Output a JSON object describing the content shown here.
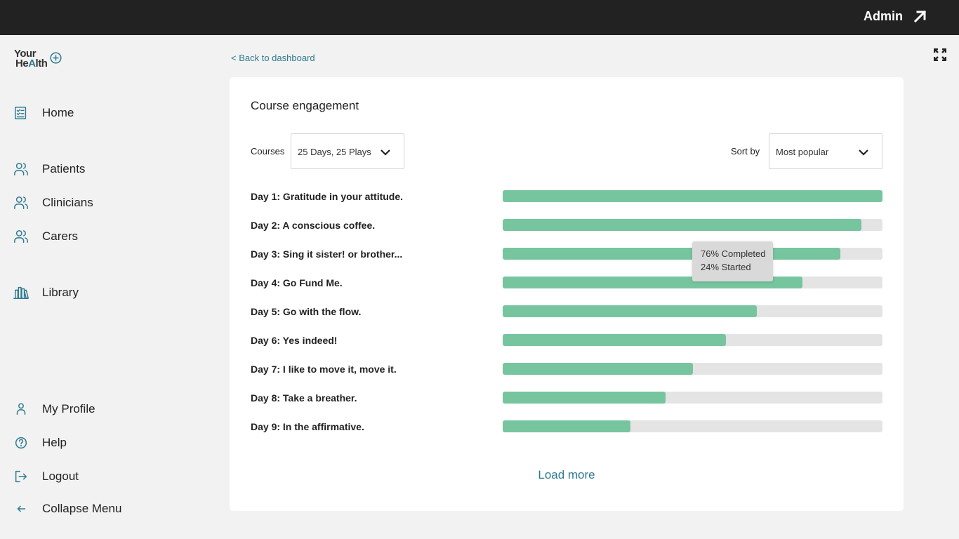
{
  "topbar": {
    "admin_label": "Admin"
  },
  "logo": {
    "line1": "Your",
    "line2_a": "He",
    "line2_b": "A",
    "line2_c": "lth"
  },
  "sidebar": {
    "items": [
      {
        "label": "Home",
        "icon": "checklist-icon"
      },
      {
        "label": "Patients",
        "icon": "users-icon"
      },
      {
        "label": "Clinicians",
        "icon": "users-icon"
      },
      {
        "label": "Carers",
        "icon": "users-icon"
      },
      {
        "label": "Library",
        "icon": "books-icon"
      },
      {
        "label": "My Profile",
        "icon": "person-icon"
      },
      {
        "label": "Help",
        "icon": "help-icon"
      },
      {
        "label": "Logout",
        "icon": "logout-icon"
      },
      {
        "label": "Collapse Menu",
        "icon": "arrow-left-icon"
      }
    ]
  },
  "back_link": "< Back to dashboard",
  "card": {
    "title": "Course engagement",
    "courses_label": "Courses",
    "courses_value": "25 Days, 25 Plays",
    "sort_label": "Sort by",
    "sort_value": "Most popular",
    "rows": [
      {
        "label": "Day 1: Gratitude in your attitude.",
        "completed": 1.0
      },
      {
        "label": "Day 2: A conscious coffee.",
        "completed": 0.945
      },
      {
        "label": "Day 3: Sing it sister! or brother...",
        "completed": 0.89
      },
      {
        "label": "Day 4: Go Fund Me.",
        "completed": 0.79
      },
      {
        "label": "Day 5: Go with the flow.",
        "completed": 0.67
      },
      {
        "label": "Day 6: Yes indeed!",
        "completed": 0.588
      },
      {
        "label": "Day 7: I like to move it, move it.",
        "completed": 0.5
      },
      {
        "label": "Day 8: Take a breather.",
        "completed": 0.428
      },
      {
        "label": "Day 9: In the affirmative.",
        "completed": 0.336
      }
    ],
    "tooltip": {
      "line1": "76% Completed",
      "line2": "24% Started"
    },
    "load_more": "Load more"
  },
  "colors": {
    "accent": "#2e7a90",
    "bar_fill": "#76c59f",
    "bar_track": "#e4e4e4",
    "topbar": "#222222"
  }
}
